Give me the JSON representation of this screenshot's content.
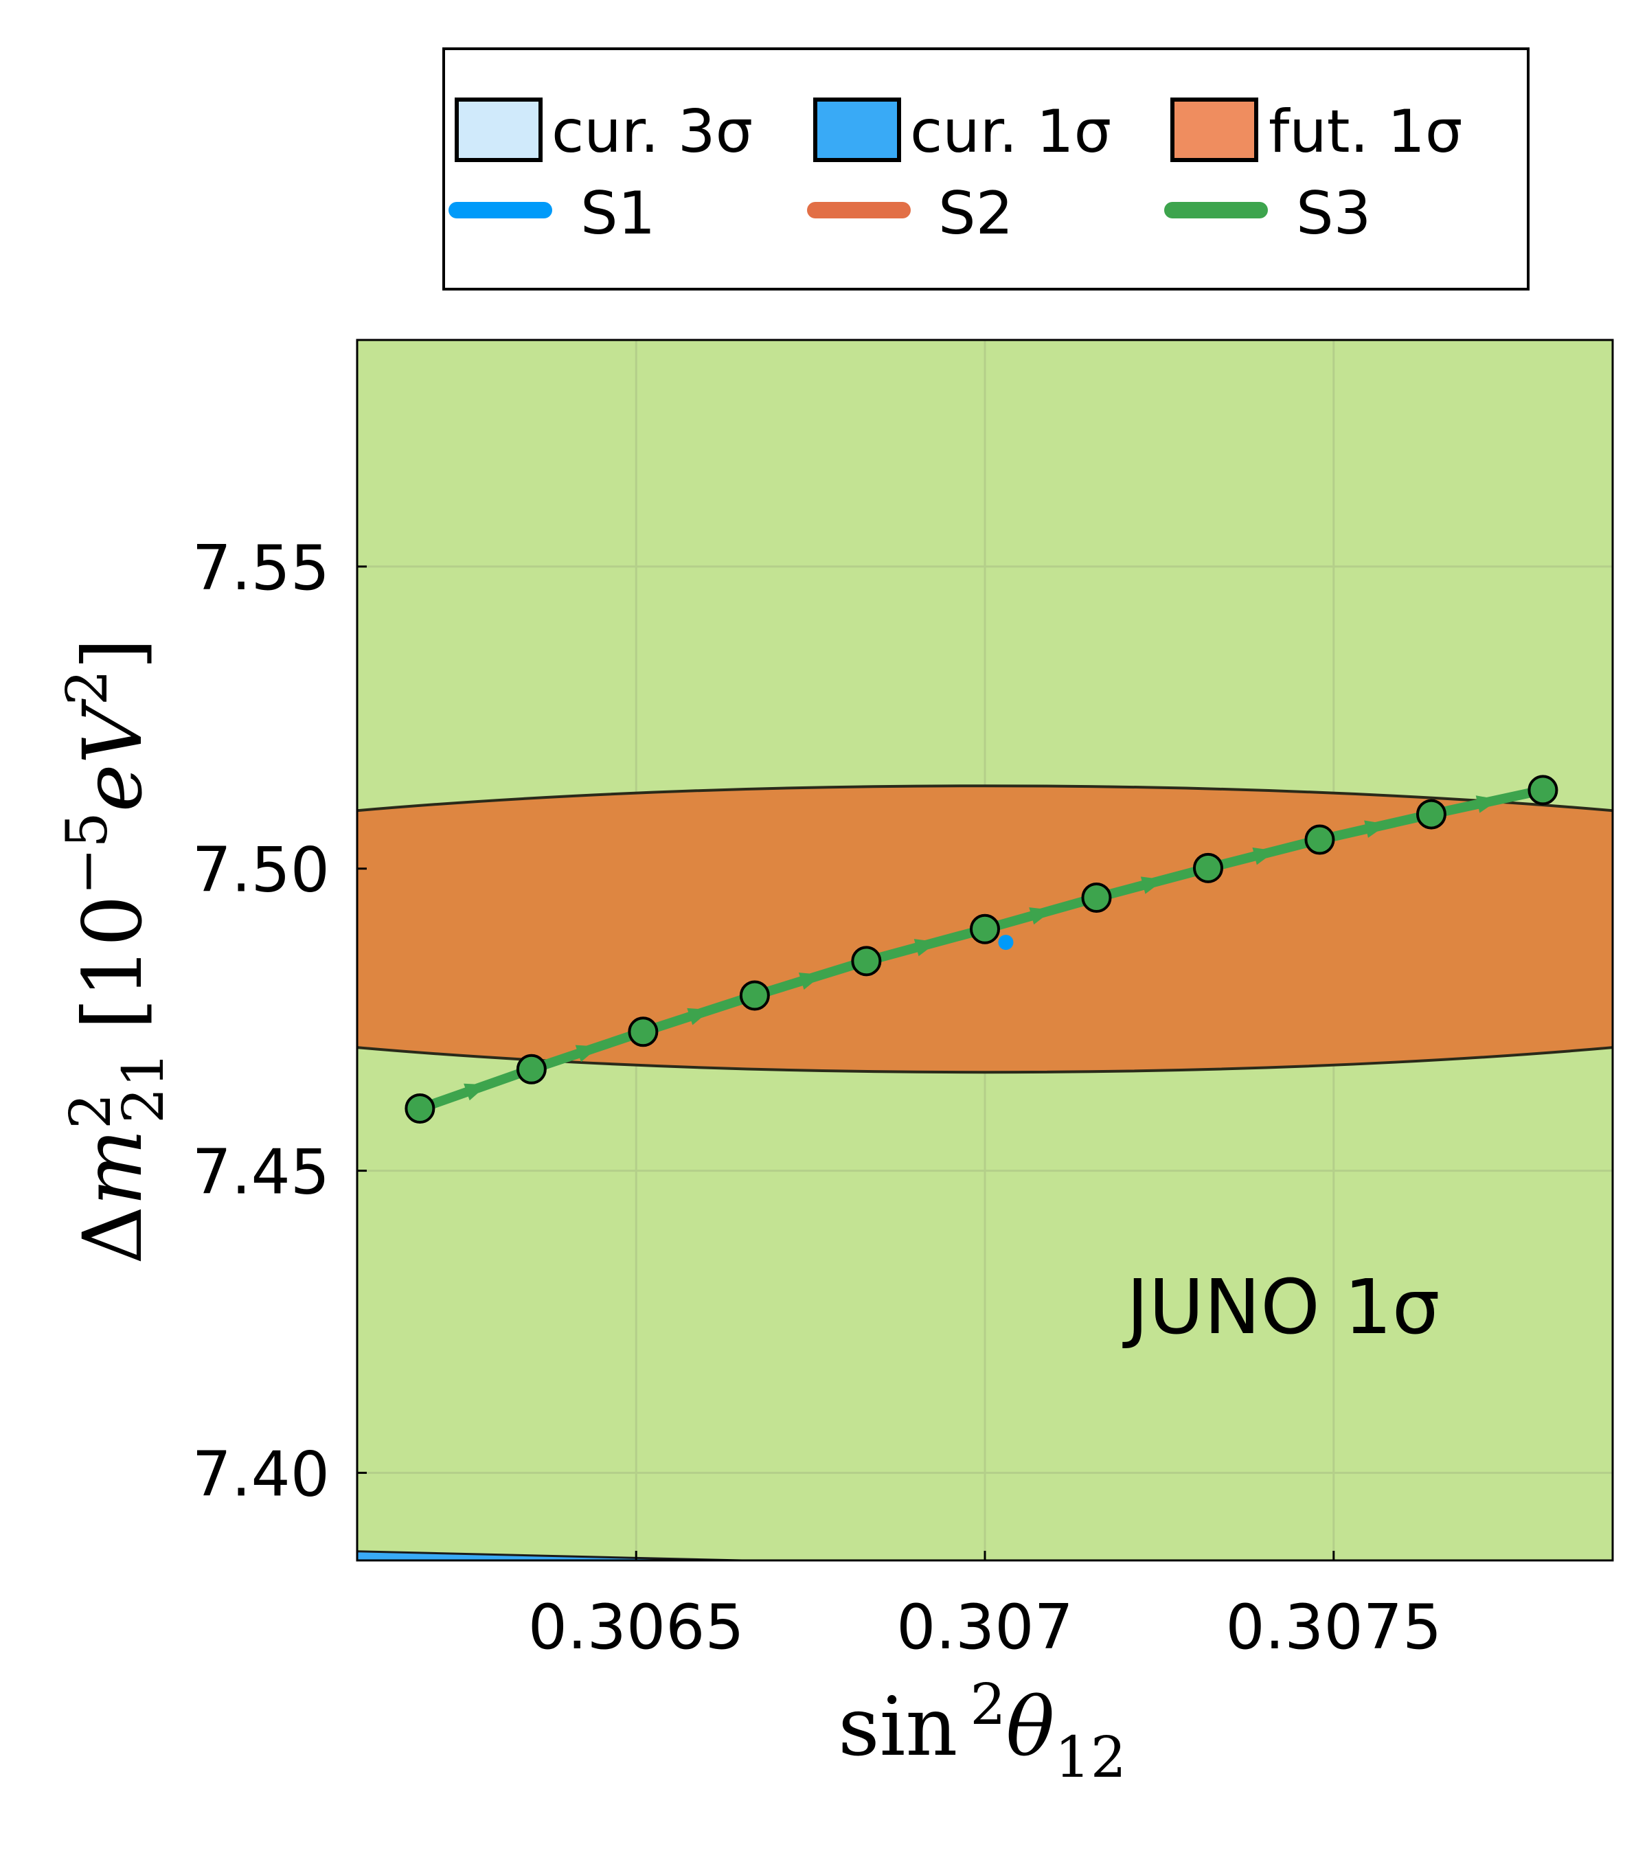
{
  "chart_data": {
    "type": "line",
    "xlabel": "sin²θ₁₂",
    "ylabel": "Δm²₂₁ [10⁻⁵eV²]",
    "xlim": [
      0.3061,
      0.3079
    ],
    "ylim": [
      7.3855,
      7.5875
    ],
    "x_ticks": [
      0.3065,
      0.307,
      0.3075
    ],
    "x_tick_labels": [
      "0.3065",
      "0.307",
      "0.3075"
    ],
    "y_ticks": [
      7.4,
      7.45,
      7.5,
      7.55
    ],
    "y_tick_labels": [
      "7.40",
      "7.45",
      "7.50",
      "7.55"
    ],
    "grid": true,
    "legend_position": "top, outside plot area, 3 columns",
    "annotation": "JUNO 1σ",
    "background_color": "#c3e393",
    "regions": [
      {
        "name": "cur. 3σ",
        "color": "#d0eafb"
      },
      {
        "name": "cur. 1σ",
        "color": "#39aaf6"
      },
      {
        "name": "fut. 1σ",
        "color": "#ef8d5f"
      }
    ],
    "juno_ellipse": {
      "center": [
        0.307,
        7.49
      ],
      "half_width_x": 0.0016,
      "half_height_y": 0.0237,
      "color": "#de8641"
    },
    "cur_1sigma_edge": [
      [
        0.3061,
        7.387
      ],
      [
        0.30665,
        7.3855
      ]
    ],
    "series": [
      {
        "name": "S1",
        "color": "#009af9",
        "values": [
          [
            0.30703,
            7.4878
          ]
        ]
      },
      {
        "name": "S2",
        "color": "#e26f46",
        "values": []
      },
      {
        "name": "S3",
        "color": "#3da44d",
        "values": [
          [
            0.30619,
            7.4603
          ],
          [
            0.30635,
            7.4668
          ],
          [
            0.30651,
            7.473
          ],
          [
            0.30667,
            7.479
          ],
          [
            0.30683,
            7.4847
          ],
          [
            0.307,
            7.49
          ],
          [
            0.30716,
            7.4952
          ],
          [
            0.30732,
            7.5001
          ],
          [
            0.30748,
            7.5048
          ],
          [
            0.30764,
            7.509
          ],
          [
            0.3078,
            7.513
          ]
        ]
      }
    ]
  }
}
